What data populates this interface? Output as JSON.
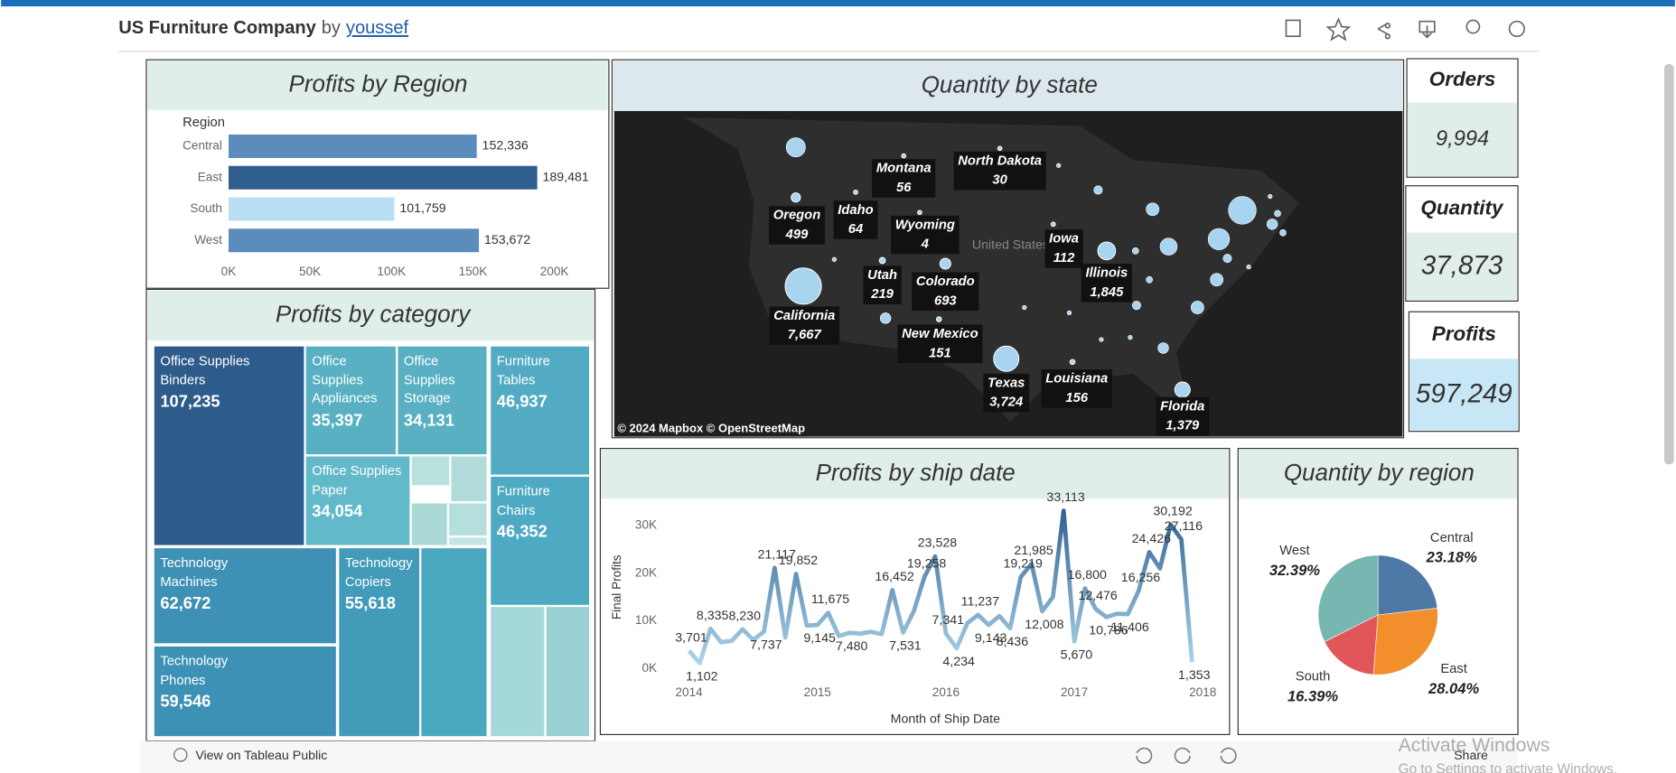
{
  "header": {
    "title": "US Furniture Company",
    "by": "by",
    "author": "youssef"
  },
  "kpis": [
    {
      "title": "Orders",
      "value": "9,994"
    },
    {
      "title": "Quantity",
      "value": "37,873"
    },
    {
      "title": "Profits",
      "value": "597,249"
    }
  ],
  "footer": {
    "view": "View on Tableau Public",
    "share": "Share",
    "watermark": "Activate Windows",
    "watermark_sub": "Go to Settings to activate Windows."
  },
  "chart_data": [
    {
      "type": "bar",
      "orientation": "horizontal",
      "title": "Profits by Region",
      "axis_label": "Region",
      "categories": [
        "Central",
        "East",
        "South",
        "West"
      ],
      "values": [
        152336,
        189481,
        101759,
        153672
      ],
      "value_labels": [
        "152,336",
        "189,481",
        "101,759",
        "153,672"
      ],
      "colors": [
        "#5b8cbc",
        "#2f5d8c",
        "#b8e0f2",
        "#5b8cbc"
      ],
      "xlim": [
        0,
        200000
      ],
      "xticks": [
        {
          "value": 0,
          "label": "0K"
        },
        {
          "value": 50000,
          "label": "50K"
        },
        {
          "value": 100000,
          "label": "100K"
        },
        {
          "value": 150000,
          "label": "150K"
        },
        {
          "value": 200000,
          "label": "200K"
        }
      ]
    },
    {
      "type": "map",
      "title": "Quantity by state",
      "map_label": "United States",
      "attribution": "© 2024 Mapbox © OpenStreetMap",
      "color": "#a9d4f0",
      "states": [
        "Oregon",
        "Idaho",
        "Montana",
        "North Dakota",
        "Wyoming",
        "Utah",
        "Colorado",
        "Iowa",
        "Illinois",
        "California",
        "New Mexico",
        "Texas",
        "Louisiana",
        "Florida"
      ],
      "values": [
        499,
        64,
        56,
        30,
        4,
        219,
        693,
        112,
        1845,
        7667,
        151,
        3724,
        156,
        1379
      ],
      "value_labels": [
        "499",
        "64",
        "56",
        "30",
        "4",
        "219",
        "693",
        "112",
        "1,845",
        "7,667",
        "151",
        "3,724",
        "156",
        "1,379"
      ]
    },
    {
      "type": "treemap",
      "title": "Profits by category",
      "groups": [
        "Office Supplies",
        "Office Supplies",
        "Office Supplies",
        "Furniture",
        "Office Supplies",
        "Furniture",
        "Technology",
        "Technology",
        "Technology"
      ],
      "categories": [
        "Binders",
        "Appliances",
        "Storage",
        "Tables",
        "Paper",
        "Chairs",
        "Machines",
        "Copiers",
        "Phones"
      ],
      "values": [
        107235,
        35397,
        34131,
        46937,
        34054,
        46352,
        62672,
        55618,
        59546
      ],
      "value_labels": [
        "107,235",
        "35,397",
        "34,131",
        "46,937",
        "34,054",
        "46,352",
        "62,672",
        "55,618",
        "59,546"
      ],
      "colors": [
        "#2d5b8b",
        "#58b0c2",
        "#58b0c2",
        "#52abc3",
        "#62b9c9",
        "#4ea9c3",
        "#3e90b4",
        "#429bb9",
        "#3d91b5"
      ]
    },
    {
      "type": "line",
      "title": "Profits by ship date",
      "xlabel": "Month of Ship Date",
      "ylabel": "Final Profits",
      "x": [
        2014,
        2014.0833,
        2014.1667,
        2014.25,
        2014.3333,
        2014.4167,
        2014.5,
        2014.5833,
        2014.6667,
        2014.75,
        2014.8333,
        2014.9167,
        2015,
        2015.0833,
        2015.1667,
        2015.25,
        2015.3333,
        2015.4167,
        2015.5,
        2015.5833,
        2015.6667,
        2015.75,
        2015.8333,
        2015.9167,
        2016,
        2016.0833,
        2016.1667,
        2016.25,
        2016.3333,
        2016.4167,
        2016.5,
        2016.5833,
        2016.6667,
        2016.75,
        2016.8333,
        2016.9167,
        2017,
        2017.0833,
        2017.1667,
        2017.25,
        2017.3333,
        2017.4167,
        2017.5,
        2017.5833,
        2017.6667,
        2017.75,
        2017.8333,
        2017.9167
      ],
      "values": [
        3701,
        1102,
        8335,
        5500,
        5800,
        8230,
        6000,
        7737,
        21117,
        6500,
        19852,
        9000,
        9145,
        11675,
        6800,
        7480,
        7300,
        7700,
        7200,
        16452,
        7531,
        12000,
        19258,
        23528,
        7341,
        4234,
        9500,
        11237,
        9143,
        11000,
        8436,
        19219,
        21985,
        12008,
        15000,
        33113,
        5670,
        16800,
        12476,
        10786,
        11500,
        11406,
        16256,
        24426,
        21000,
        30192,
        27116,
        1353
      ],
      "value_labels": [
        "3,701",
        "1,102",
        "8,335",
        null,
        null,
        "8,230",
        null,
        "7,737",
        "21,117",
        null,
        "19,852",
        null,
        "9,145",
        "11,675",
        null,
        "7,480",
        null,
        null,
        null,
        "16,452",
        "7,531",
        null,
        "19,258",
        "23,528",
        "7,341",
        "4,234",
        null,
        "11,237",
        "9,143",
        null,
        "8,436",
        "19,219",
        "21,985",
        "12,008",
        null,
        "33,113",
        "5,670",
        "16,800",
        "12,476",
        "10,786",
        null,
        "11,406",
        "16,256",
        "24,426",
        null,
        "30,192",
        "27,116",
        "1,353"
      ],
      "colors": [
        "#b7def1",
        "#2b5b8c"
      ],
      "xlim": [
        2013.8,
        2018.2
      ],
      "xticks": [
        2014,
        2015,
        2016,
        2017,
        2018
      ],
      "ylim": [
        -2000,
        35000
      ],
      "yticks": [
        {
          "value": 0,
          "label": "0K"
        },
        {
          "value": 10000,
          "label": "10K"
        },
        {
          "value": 20000,
          "label": "20K"
        },
        {
          "value": 30000,
          "label": "30K"
        }
      ]
    },
    {
      "type": "pie",
      "title": "Quantity by region",
      "categories": [
        "Central",
        "East",
        "South",
        "West"
      ],
      "values": [
        23.18,
        28.04,
        16.39,
        32.39
      ],
      "value_labels": [
        "23.18%",
        "28.04%",
        "16.39%",
        "32.39%"
      ],
      "colors": [
        "#4e79a7",
        "#f28e2b",
        "#e15759",
        "#76b7b2"
      ]
    }
  ]
}
